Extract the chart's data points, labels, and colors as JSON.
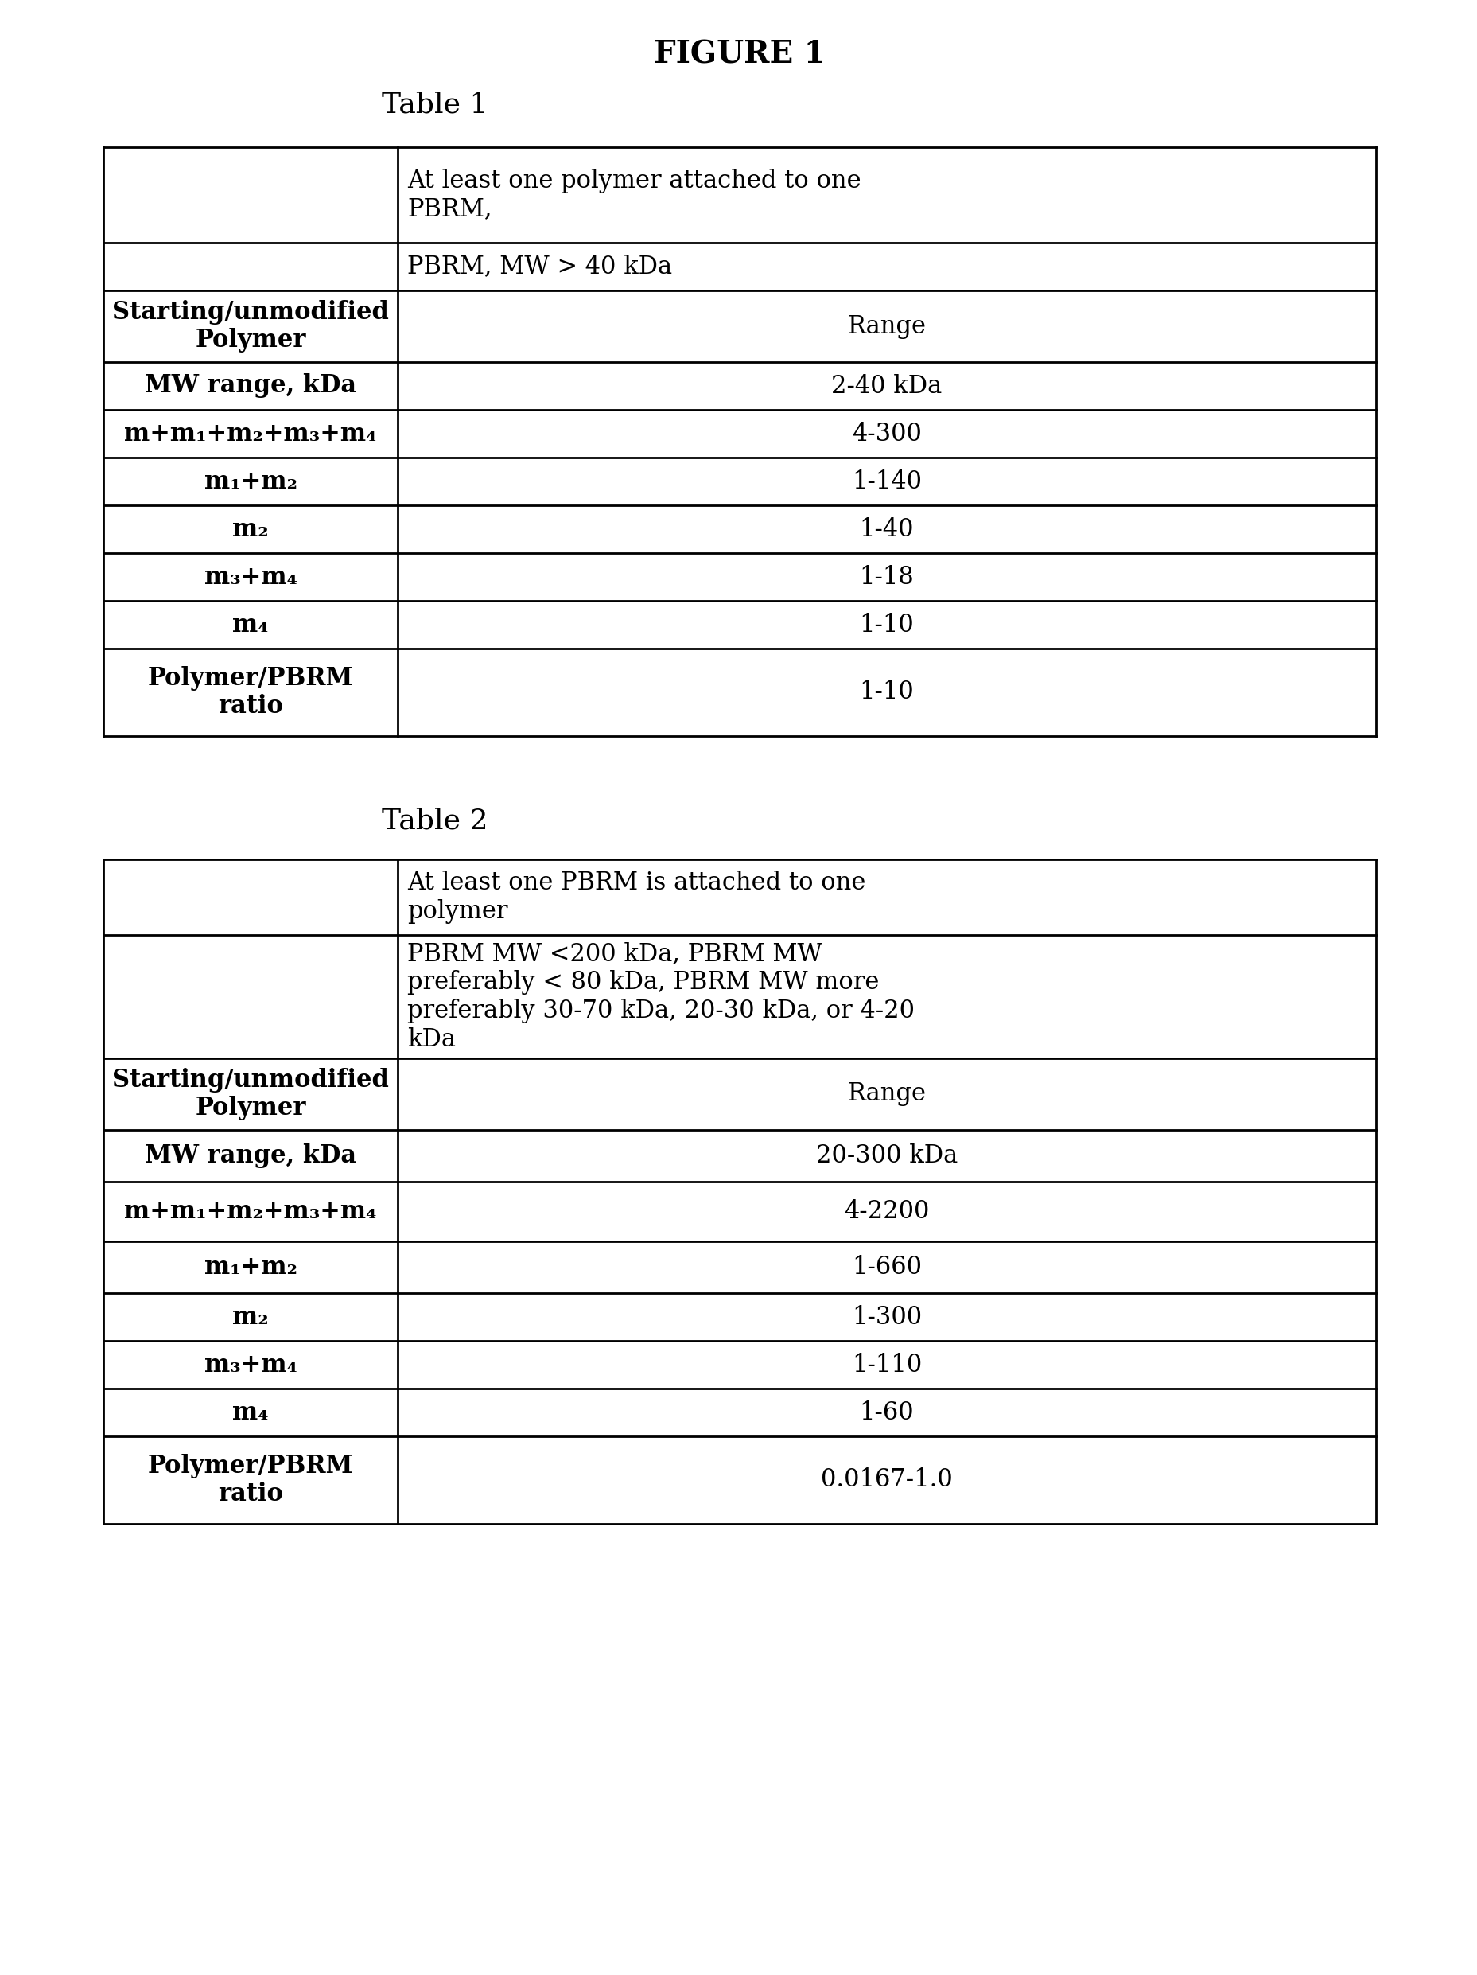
{
  "figure_title": "FIGURE 1",
  "table1_title": "Table 1",
  "table2_title": "Table 2",
  "bg_color": "#ffffff",
  "text_color": "#000000",
  "line_color": "#000000",
  "font_size_fig_title": 28,
  "font_size_table_title": 26,
  "font_size_cell": 22,
  "t1_header_row1_right": "At least one polymer attached to one\nPBRM,",
  "t1_header_row2_right": "PBRM, MW > 40 kDa",
  "t1_rows_left": [
    "Starting/unmodified\nPolymer",
    "MW range, kDa",
    "m+m₁+m₂+m₃+m₄",
    "m₁+m₂",
    "m₂",
    "m₃+m₄",
    "m₄",
    "Polymer/PBRM\nratio"
  ],
  "t1_rows_right": [
    "Range",
    "2-40 kDa",
    "4-300",
    "1-140",
    "1-40",
    "1-18",
    "1-10",
    "1-10"
  ],
  "t1_row_heights": [
    120,
    60,
    90,
    60,
    60,
    60,
    60,
    60,
    60,
    110
  ],
  "t2_header_row1_right": "At least one PBRM is attached to one\npolymer",
  "t2_header_row2_right": "PBRM MW <200 kDa, PBRM MW\npreferably < 80 kDa, PBRM MW more\npreferably 30-70 kDa, 20-30 kDa, or 4-20\nkDa",
  "t2_rows_left": [
    "Starting/unmodified\nPolymer",
    "MW range, kDa",
    "m+m₁+m₂+m₃+m₄",
    "m₁+m₂",
    "m₂",
    "m₃+m₄",
    "m₄",
    "Polymer/PBRM\nratio"
  ],
  "t2_rows_right": [
    "Range",
    "20-300 kDa",
    "4-2200",
    "1-660",
    "1-300",
    "1-110",
    "1-60",
    "0.0167-1.0"
  ],
  "t2_row_heights": [
    95,
    155,
    90,
    65,
    75,
    65,
    60,
    60,
    60,
    110
  ]
}
